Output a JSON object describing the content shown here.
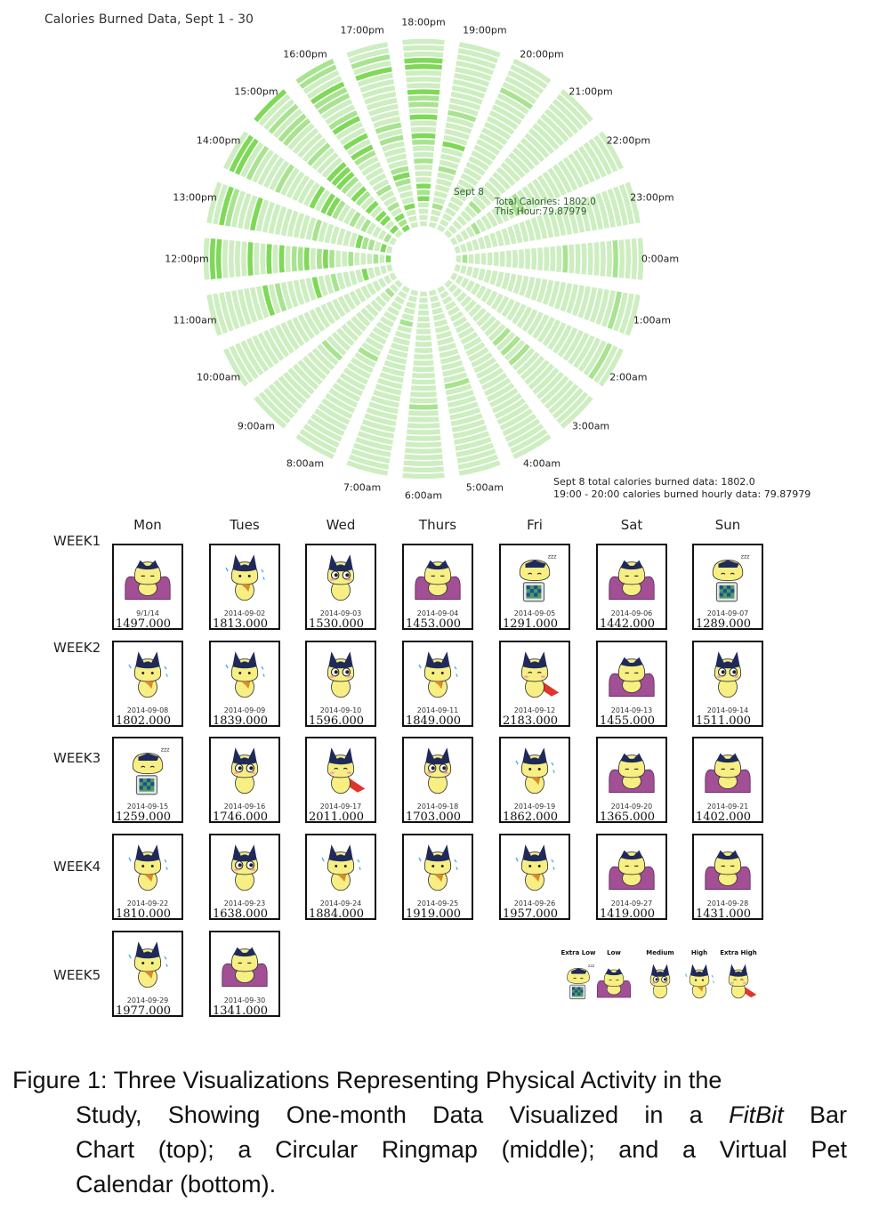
{
  "ringmap": {
    "title": "Calories Burned Data, Sept 1 - 30",
    "hour_labels": [
      "0:00am",
      "1:00am",
      "2:00am",
      "3:00am",
      "4:00am",
      "5:00am",
      "6:00am",
      "7:00am",
      "8:00am",
      "9:00am",
      "10:00am",
      "11:00am",
      "12:00pm",
      "13:00pm",
      "14:00pm",
      "15:00pm",
      "16:00pm",
      "17:00pm",
      "18:00pm",
      "19:00pm",
      "20:00pm",
      "21:00pm",
      "22:00pm",
      "23:00pm"
    ],
    "tooltip": {
      "day": "Sept 8",
      "total": "Total Calories: 1802.0",
      "hour": "This  Hour:79.87979"
    },
    "footnote": {
      "line1": "Sept 8 total calories burned data: 1802.0",
      "line2": "19:00 - 20:00 calories burned hourly data: 79.87979"
    },
    "colors": {
      "base": "#cdeec0",
      "mid": "#a8e38f",
      "high": "#7ed957"
    }
  },
  "calendar": {
    "days": [
      "Mon",
      "Tues",
      "Wed",
      "Thurs",
      "Fri",
      "Sat",
      "Sun"
    ],
    "weeks": [
      {
        "label": "WEEK1",
        "cells": [
          {
            "date": "9/1/14",
            "value": "1497.000",
            "level": "Low"
          },
          {
            "date": "2014-09-02",
            "value": "1813.000",
            "level": "High"
          },
          {
            "date": "2014-09-03",
            "value": "1530.000",
            "level": "Medium"
          },
          {
            "date": "2014-09-04",
            "value": "1453.000",
            "level": "Low"
          },
          {
            "date": "2014-09-05",
            "value": "1291.000",
            "level": "Extra Low"
          },
          {
            "date": "2014-09-06",
            "value": "1442.000",
            "level": "Low"
          },
          {
            "date": "2014-09-07",
            "value": "1289.000",
            "level": "Extra Low"
          }
        ]
      },
      {
        "label": "WEEK2",
        "cells": [
          {
            "date": "2014-09-08",
            "value": "1802.000",
            "level": "High"
          },
          {
            "date": "2014-09-09",
            "value": "1839.000",
            "level": "High"
          },
          {
            "date": "2014-09-10",
            "value": "1596.000",
            "level": "Medium"
          },
          {
            "date": "2014-09-11",
            "value": "1849.000",
            "level": "High"
          },
          {
            "date": "2014-09-12",
            "value": "2183.000",
            "level": "Extra High"
          },
          {
            "date": "2014-09-13",
            "value": "1455.000",
            "level": "Low"
          },
          {
            "date": "2014-09-14",
            "value": "1511.000",
            "level": "Medium"
          }
        ]
      },
      {
        "label": "WEEK3",
        "cells": [
          {
            "date": "2014-09-15",
            "value": "1259.000",
            "level": "Extra Low"
          },
          {
            "date": "2014-09-16",
            "value": "1746.000",
            "level": "Medium"
          },
          {
            "date": "2014-09-17",
            "value": "2011.000",
            "level": "Extra High"
          },
          {
            "date": "2014-09-18",
            "value": "1703.000",
            "level": "Medium"
          },
          {
            "date": "2014-09-19",
            "value": "1862.000",
            "level": "High"
          },
          {
            "date": "2014-09-20",
            "value": "1365.000",
            "level": "Low"
          },
          {
            "date": "2014-09-21",
            "value": "1402.000",
            "level": "Low"
          }
        ]
      },
      {
        "label": "WEEK4",
        "cells": [
          {
            "date": "2014-09-22",
            "value": "1810.000",
            "level": "High"
          },
          {
            "date": "2014-09-23",
            "value": "1638.000",
            "level": "Medium"
          },
          {
            "date": "2014-09-24",
            "value": "1884.000",
            "level": "High"
          },
          {
            "date": "2014-09-25",
            "value": "1919.000",
            "level": "High"
          },
          {
            "date": "2014-09-26",
            "value": "1957.000",
            "level": "High"
          },
          {
            "date": "2014-09-27",
            "value": "1419.000",
            "level": "Low"
          },
          {
            "date": "2014-09-28",
            "value": "1431.000",
            "level": "Low"
          }
        ]
      },
      {
        "label": "WEEK5",
        "cells": [
          {
            "date": "2014-09-29",
            "value": "1977.000",
            "level": "High"
          },
          {
            "date": "2014-09-30",
            "value": "1341.000",
            "level": "Low"
          }
        ]
      }
    ],
    "legend": [
      "Extra Low",
      "Low",
      "Medium",
      "High",
      "Extra High"
    ]
  },
  "caption": {
    "line1": "Figure 1:  Three Visualizations Representing Physical Activity in the",
    "line2_pre": "Study, Showing One-month Data Visualized in a ",
    "line2_em": "FitBit",
    "line2_post": " Bar",
    "line3": "Chart (top); a Circular Ringmap (middle); and a Virtual Pet",
    "line4": "Calendar (bottom)."
  }
}
